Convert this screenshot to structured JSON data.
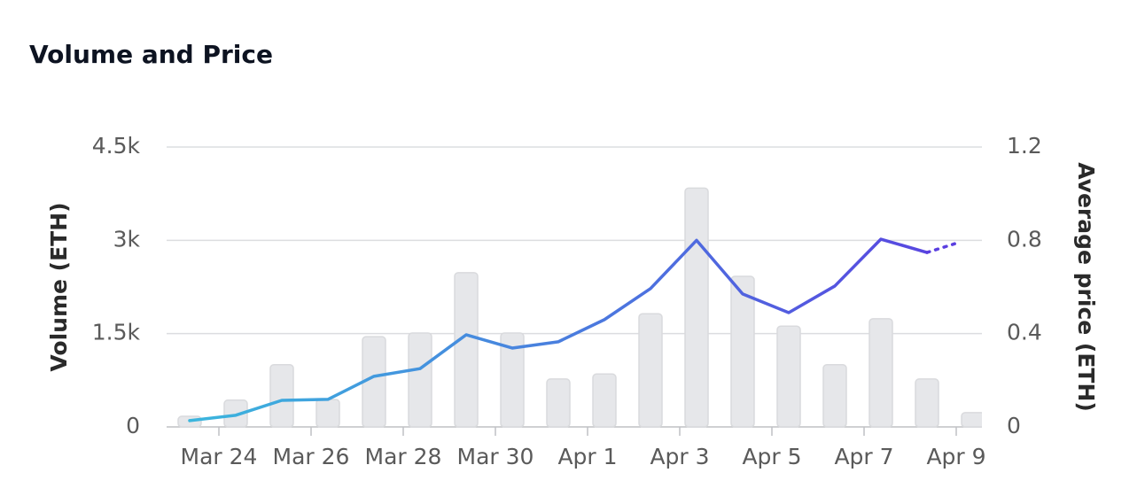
{
  "chart_data": {
    "type": "bar-line",
    "title": "Volume and Price",
    "categories": [
      null,
      "Mar 24",
      null,
      "Mar 26",
      null,
      "Mar 28",
      null,
      "Mar 30",
      null,
      "Apr 1",
      null,
      "Apr 3",
      null,
      "Apr 5",
      null,
      "Apr 7",
      null,
      "Apr 9"
    ],
    "series": [
      {
        "name": "Volume (ETH)",
        "type": "bar",
        "color": "#e6e7ea",
        "values": [
          170,
          430,
          1000,
          440,
          1450,
          1510,
          2480,
          1510,
          770,
          850,
          1820,
          3840,
          2420,
          1620,
          1000,
          1740,
          770,
          230
        ]
      },
      {
        "name": "Average price (ETH)",
        "type": "line",
        "axis": "y2",
        "color": "#5a3fe0",
        "gradient": [
          "#3ab9dd",
          "#5a3fe0"
        ],
        "values": [
          0.027,
          0.05,
          0.114,
          0.118,
          0.217,
          0.25,
          0.395,
          0.338,
          0.365,
          0.46,
          0.593,
          0.8,
          0.57,
          0.49,
          0.604,
          0.805,
          0.748,
          0.81
        ]
      }
    ],
    "ylabel": "Volume (ETH)",
    "y2label": "Average price (ETH)",
    "ylim": [
      0,
      4500
    ],
    "yticks": [
      0,
      {
        "value": 1500,
        "label": "1.5k"
      },
      {
        "value": 3000,
        "label": "3k"
      },
      {
        "value": 4500,
        "label": "4.5k"
      }
    ],
    "y2lim": [
      0,
      1.2
    ],
    "y2ticks": [
      0,
      0.4,
      0.8,
      1.2
    ],
    "grid": true
  }
}
